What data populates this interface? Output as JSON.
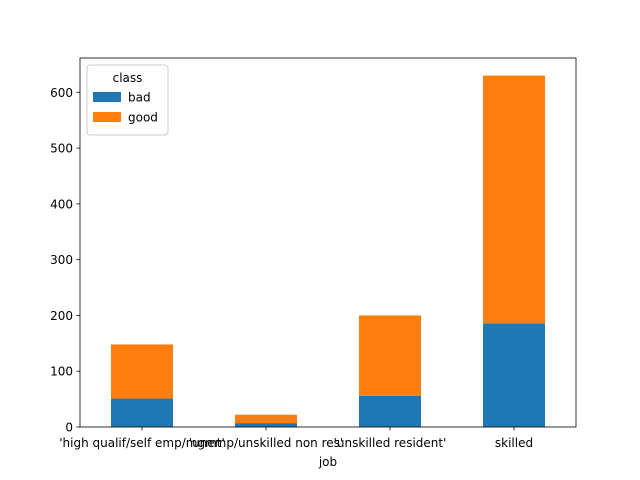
{
  "chart_data": {
    "type": "bar",
    "stacked": true,
    "categories": [
      "'high qualif/self emp/mgmt'",
      "'unemp/unskilled non res'",
      "'unskilled resident'",
      "skilled"
    ],
    "series": [
      {
        "name": "bad",
        "values": [
          51,
          7,
          56,
          186
        ],
        "color": "#1f77b4"
      },
      {
        "name": "good",
        "values": [
          97,
          15,
          144,
          444
        ],
        "color": "#ff7f0e"
      }
    ],
    "xlabel": "job",
    "ylabel": "",
    "ylim": [
      0,
      661.5
    ],
    "yticks": [
      0,
      100,
      200,
      300,
      400,
      500,
      600
    ],
    "legend": {
      "title": "class",
      "placement": "top-left"
    },
    "grid": false
  }
}
